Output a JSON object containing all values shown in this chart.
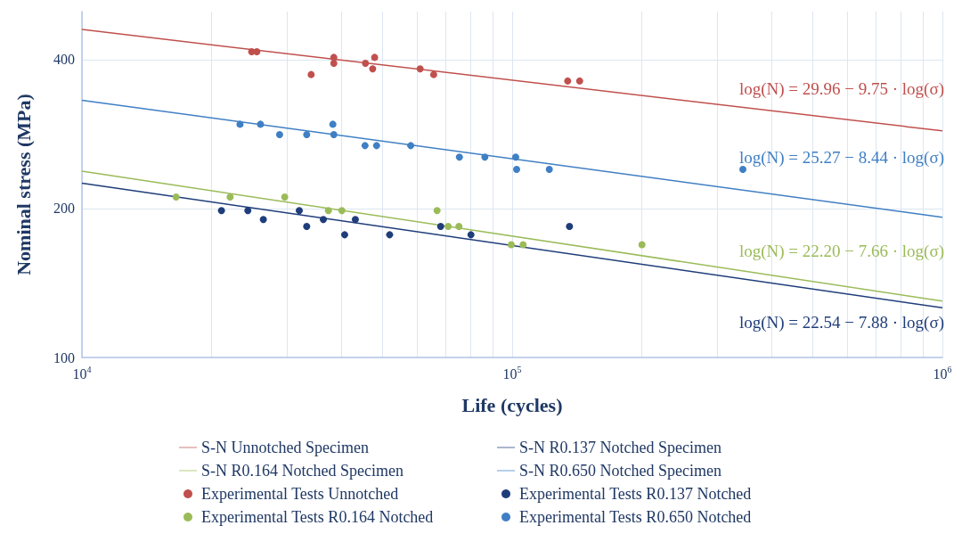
{
  "chart_data": {
    "type": "scatter",
    "xlabel": "Life (cycles)",
    "ylabel": "Nominal stress (MPa)",
    "log": "xy",
    "grid": true,
    "legend": "bottom",
    "xlim": [
      10000,
      1000000
    ],
    "ylim": [
      100,
      500
    ],
    "xticks": [
      {
        "value": 10000,
        "label": "10$^{4}$"
      },
      {
        "value": 20000,
        "label": null
      },
      {
        "value": 30000,
        "label": null
      },
      {
        "value": 40000,
        "label": null
      },
      {
        "value": 50000,
        "label": null
      },
      {
        "value": 60000,
        "label": null
      },
      {
        "value": 70000,
        "label": null
      },
      {
        "value": 80000,
        "label": null
      },
      {
        "value": 90000,
        "label": null
      },
      {
        "value": 100000,
        "label": "10$^{5}$"
      },
      {
        "value": 200000,
        "label": null
      },
      {
        "value": 300000,
        "label": null
      },
      {
        "value": 400000,
        "label": null
      },
      {
        "value": 500000,
        "label": null
      },
      {
        "value": 600000,
        "label": null
      },
      {
        "value": 700000,
        "label": null
      },
      {
        "value": 800000,
        "label": null
      },
      {
        "value": 900000,
        "label": null
      },
      {
        "value": 1000000,
        "label": "10$^{6}$"
      }
    ],
    "yticks": [
      100,
      200,
      400
    ],
    "series": [
      {
        "name": "S-N Unnotched Specimen",
        "type": "line",
        "marker": "none",
        "color": "#c0504d",
        "x": [
          10000,
          1000000
        ],
        "values": [
          460,
          287
        ]
      },
      {
        "name": "S-N R0.137 Notched Specimen",
        "type": "line",
        "marker": "none",
        "color": "#1f3d7a",
        "x": [
          10000,
          1000000
        ],
        "values": [
          225,
          126
        ]
      },
      {
        "name": "S-N R0.164 Notched Specimen",
        "type": "line",
        "marker": "none",
        "color": "#9bbb59",
        "x": [
          10000,
          1000000
        ],
        "values": [
          238,
          130
        ]
      },
      {
        "name": "S-N R0.650 Notched Specimen",
        "type": "line",
        "marker": "none",
        "color": "#3f7fc4",
        "x": [
          10000,
          1000000
        ],
        "values": [
          331,
          192
        ]
      },
      {
        "name": "Experimental Tests Unnotched",
        "marker": "circle",
        "color": "#c0504d",
        "x": [
          24800,
          25500,
          34100,
          38500,
          38500,
          45600,
          47400,
          47900,
          61100,
          65700,
          134600,
          143500
        ],
        "values": [
          415,
          415,
          373,
          404,
          393,
          393,
          383,
          404,
          383,
          373,
          362,
          362
        ]
      },
      {
        "name": "Experimental Tests R0.137 Notched",
        "marker": "circle",
        "color": "#1f3d7a",
        "x": [
          21100,
          24300,
          26400,
          32000,
          33300,
          36400,
          40800,
          43200,
          51900,
          68200,
          80200,
          135900
        ],
        "values": [
          198,
          198,
          190,
          198,
          184,
          190,
          177,
          190,
          177,
          184,
          177,
          184
        ]
      },
      {
        "name": "Experimental Tests R0.164 Notched",
        "marker": "circle",
        "color": "#9bbb59",
        "x": [
          16550,
          22100,
          29600,
          37400,
          40200,
          66900,
          71000,
          75200,
          99500,
          106000,
          200300
        ],
        "values": [
          211,
          211,
          211,
          198,
          198,
          198,
          184,
          184,
          169,
          169,
          169
        ]
      },
      {
        "name": "Experimental Tests R0.650 Notched",
        "marker": "circle",
        "color": "#3f7fc4",
        "x": [
          23300,
          26000,
          28800,
          33300,
          38300,
          38500,
          45500,
          48400,
          58100,
          75400,
          86400,
          101900,
          102400,
          122000,
          343700
        ],
        "values": [
          296,
          296,
          282,
          282,
          296,
          282,
          268,
          268,
          268,
          254,
          254,
          254,
          240,
          240,
          240
        ]
      }
    ],
    "annotations": [
      "log(N) = 29.96 − 9.75 · log(σ)",
      "log(N) = 25.27 − 8.44 · log(σ)",
      "log(N) = 22.20 − 7.66 · log(σ)",
      "log(N) = 22.54 − 7.88 · log(σ)"
    ]
  }
}
